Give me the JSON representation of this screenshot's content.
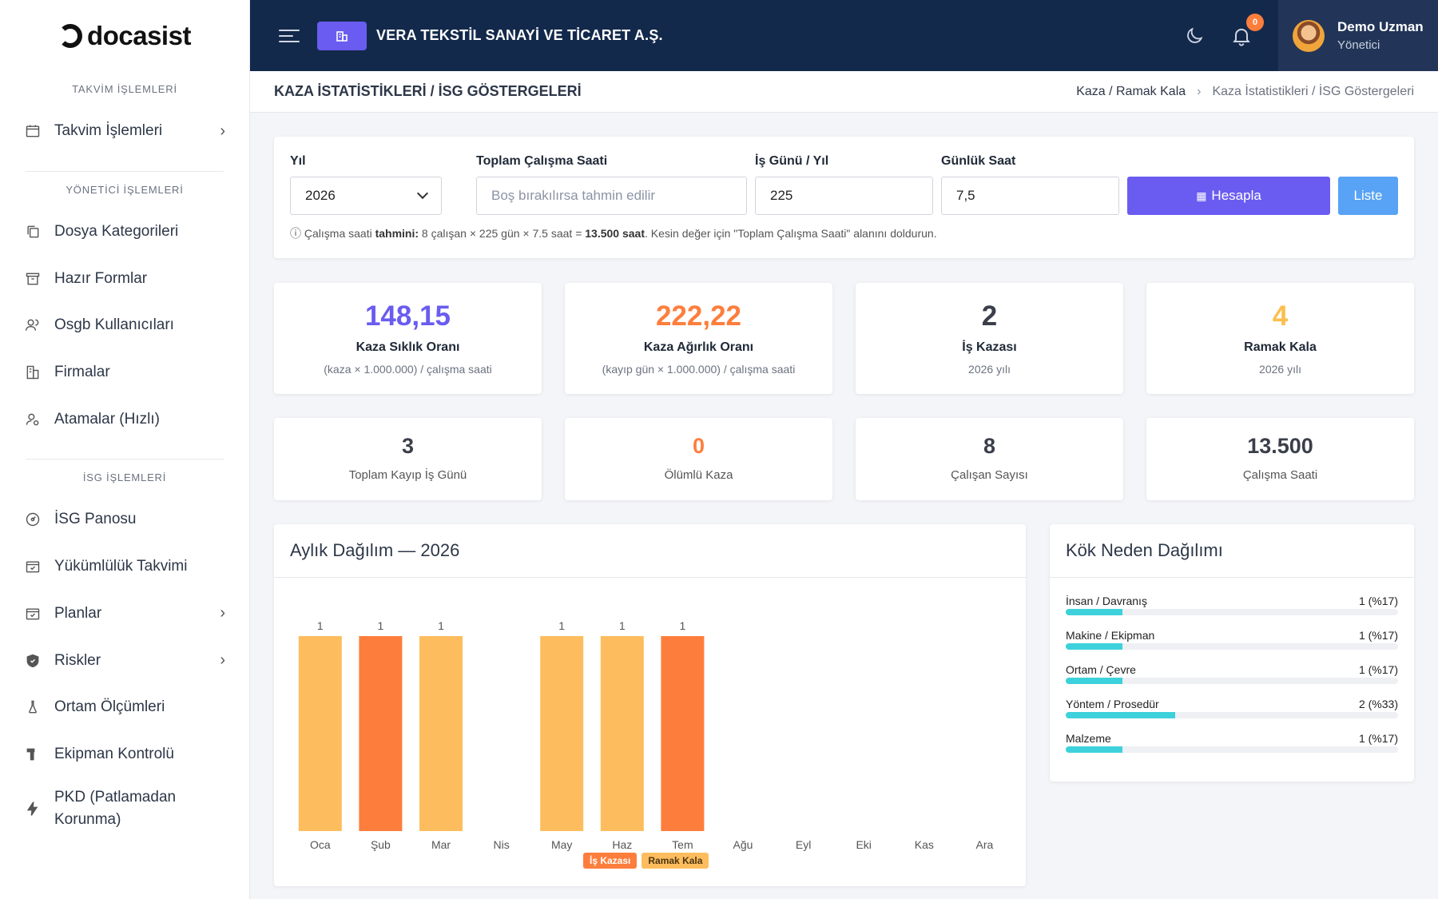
{
  "brand": {
    "logo": "docasist"
  },
  "sidebar": {
    "sections": [
      {
        "title": "TAKVİM İŞLEMLERİ",
        "items": [
          {
            "label": "Takvim İşlemleri",
            "icon": "calendar-icon",
            "chevron": true
          }
        ]
      },
      {
        "title": "YÖNETİCİ İŞLEMLERİ",
        "items": [
          {
            "label": "Dosya Kategorileri",
            "icon": "copy-icon"
          },
          {
            "label": "Hazır Formlar",
            "icon": "archive-icon"
          },
          {
            "label": "Osgb Kullanıcıları",
            "icon": "users-icon"
          },
          {
            "label": "Firmalar",
            "icon": "building-icon"
          },
          {
            "label": "Atamalar (Hızlı)",
            "icon": "user-assign-icon"
          }
        ]
      },
      {
        "title": "İSG İŞLEMLERİ",
        "items": [
          {
            "label": "İSG Panosu",
            "icon": "dashboard-icon"
          },
          {
            "label": "Yükümlülük Takvimi",
            "icon": "calendar-check-icon"
          },
          {
            "label": "Planlar",
            "icon": "calendar-check-icon",
            "chevron": true
          },
          {
            "label": "Riskler",
            "icon": "shield-icon",
            "chevron": true
          },
          {
            "label": "Ortam Ölçümleri",
            "icon": "flask-icon"
          },
          {
            "label": "Ekipman Kontrolü",
            "icon": "tool-icon"
          },
          {
            "label": "PKD (Patlamadan Korunma)",
            "icon": "bolt-icon"
          }
        ]
      }
    ]
  },
  "topbar": {
    "company": "VERA TEKSTİL SANAYİ VE TİCARET A.Ş.",
    "notifications": "0",
    "user_name": "Demo Uzman",
    "user_role": "Yönetici"
  },
  "page": {
    "title": "KAZA İSTATİSTİKLERİ / İSG GÖSTERGELERİ",
    "breadcrumb": [
      "Kaza / Ramak Kala",
      "Kaza İstatistikleri / İSG Göstergeleri"
    ]
  },
  "filters": {
    "year_label": "Yıl",
    "year_value": "2026",
    "total_hours_label": "Toplam Çalışma Saati",
    "total_hours_placeholder": "Boş bırakılırsa tahmin edilir",
    "workdays_label": "İş Günü / Yıl",
    "workdays_value": "225",
    "daily_hours_label": "Günlük Saat",
    "daily_hours_value": "7,5",
    "calc_button": "Hesapla",
    "list_button": "Liste",
    "hint_prefix": "ⓘ Çalışma saati ",
    "hint_bold1": "tahmini:",
    "hint_mid": " 8 çalışan × 225 gün × 7.5 saat = ",
    "hint_bold2": "13.500 saat",
    "hint_suffix": ". Kesin değer için \"Toplam Çalışma Saati\" alanını doldurun."
  },
  "stats_top": [
    {
      "value": "148,15",
      "title": "Kaza Sıklık Oranı",
      "sub": "(kaza × 1.000.000) / çalışma saati",
      "color": "#6a5cf0"
    },
    {
      "value": "222,22",
      "title": "Kaza Ağırlık Oranı",
      "sub": "(kayıp gün × 1.000.000) / çalışma saati",
      "color": "#fd7e3c"
    },
    {
      "value": "2",
      "title": "İş Kazası",
      "sub": "2026 yılı",
      "color": "#3a3f4a"
    },
    {
      "value": "4",
      "title": "Ramak Kala",
      "sub": "2026 yılı",
      "color": "#fbbf4e"
    }
  ],
  "stats_bottom": [
    {
      "value": "3",
      "sub": "Toplam Kayıp İş Günü",
      "color": "#3a3f4a"
    },
    {
      "value": "0",
      "sub": "Ölümlü Kaza",
      "color": "#fd7e3c"
    },
    {
      "value": "8",
      "sub": "Çalışan Sayısı",
      "color": "#3a3f4a"
    },
    {
      "value": "13.500",
      "sub": "Çalışma Saati",
      "color": "#3a3f4a"
    }
  ],
  "chart_data": {
    "type": "bar",
    "title": "Aylık Dağılım — 2026",
    "categories": [
      "Oca",
      "Şub",
      "Mar",
      "Nis",
      "May",
      "Haz",
      "Tem",
      "Ağu",
      "Eyl",
      "Eki",
      "Kas",
      "Ara"
    ],
    "series": [
      {
        "name": "İş Kazası",
        "color": "#fd7e3c",
        "values": [
          0,
          1,
          0,
          0,
          0,
          0,
          1,
          0,
          0,
          0,
          0,
          0
        ]
      },
      {
        "name": "Ramak Kala",
        "color": "#fdbd5e",
        "values": [
          1,
          0,
          1,
          0,
          1,
          1,
          0,
          0,
          0,
          0,
          0,
          0
        ]
      }
    ],
    "data_labels": [
      "1",
      "1",
      "1",
      "",
      "1",
      "1",
      "1",
      "",
      "",
      "",
      "",
      ""
    ],
    "ylim": [
      0,
      1
    ],
    "legend_position": "bottom-center"
  },
  "root_cause": {
    "title": "Kök Neden Dağılımı",
    "items": [
      {
        "label": "İnsan / Davranış",
        "value": "1 (%17)",
        "pct": 17
      },
      {
        "label": "Makine / Ekipman",
        "value": "1 (%17)",
        "pct": 17
      },
      {
        "label": "Ortam / Çevre",
        "value": "1 (%17)",
        "pct": 17
      },
      {
        "label": "Yöntem / Prosedür",
        "value": "2 (%33)",
        "pct": 33
      },
      {
        "label": "Malzeme",
        "value": "1 (%17)",
        "pct": 17
      }
    ]
  }
}
